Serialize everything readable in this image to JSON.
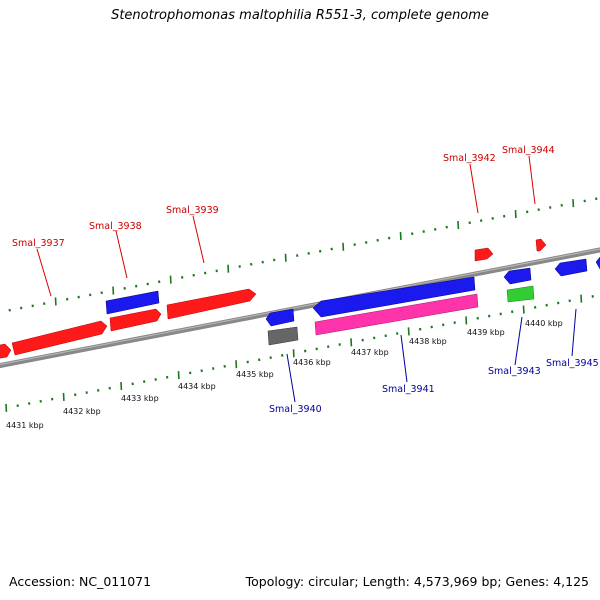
{
  "title": "Stenotrophomonas maltophilia R551-3, complete genome",
  "footer": {
    "accession": "Accession: NC_011071",
    "summary": "Topology: circular; Length: 4,573,969 bp; Genes: 4,125"
  },
  "colors": {
    "forward_cds": "#ff0000",
    "reverse_cds": "#0000ee",
    "forward_label": "#cc0000",
    "reverse_label": "#00009e",
    "backbone": "#888888",
    "tick_marks": "#1a7a1a",
    "rna_pink": "#ff33aa",
    "rna_green": "#33cc33",
    "gray_feature": "#666666"
  },
  "scale_labels": [
    "4431 kbp",
    "4432 kbp",
    "4433 kbp",
    "4434 kbp",
    "4435 kbp",
    "4436 kbp",
    "4437 kbp",
    "4438 kbp",
    "4439 kbp",
    "4440 kbp"
  ],
  "gene_labels": {
    "forward": [
      "Smal_3937",
      "Smal_3938",
      "Smal_3939",
      "Smal_3942",
      "Smal_3944"
    ],
    "reverse": [
      "Smal_3940",
      "Smal_3941",
      "Smal_3943",
      "Smal_3945"
    ]
  }
}
